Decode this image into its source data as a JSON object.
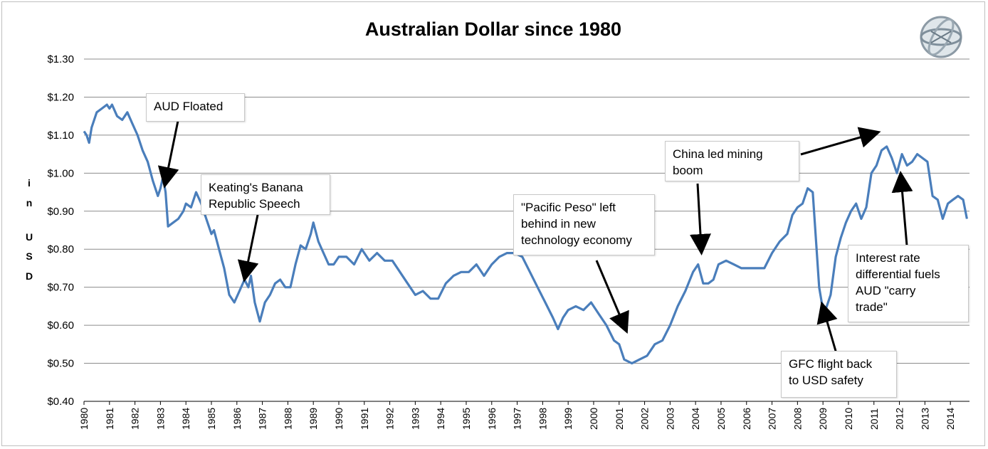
{
  "chart_data": {
    "type": "line",
    "title": "Australian Dollar since 1980",
    "ylabel": "in USD",
    "ylabel_letters": [
      "i",
      "n",
      "U",
      "S",
      "D"
    ],
    "xlim": [
      1980,
      2014.75
    ],
    "ylim": [
      0.4,
      1.3
    ],
    "y_ticks": [
      1.3,
      1.2,
      1.1,
      1.0,
      0.9,
      0.8,
      0.7,
      0.6,
      0.5,
      0.4
    ],
    "y_tick_labels": [
      "$1.30",
      "$1.20",
      "$1.10",
      "$1.00",
      "$0.90",
      "$0.80",
      "$0.70",
      "$0.60",
      "$0.50",
      "$0.40"
    ],
    "x_tick_labels": [
      "1980",
      "1981",
      "1982",
      "1983",
      "1984",
      "1985",
      "1986",
      "1987",
      "1988",
      "1989",
      "1990",
      "1991",
      "1992",
      "1993",
      "1994",
      "1995",
      "1996",
      "1997",
      "1998",
      "1999",
      "2000",
      "2001",
      "2002",
      "2003",
      "2004",
      "2005",
      "2006",
      "2007",
      "2008",
      "2009",
      "2010",
      "2011",
      "2012",
      "2013",
      "2014"
    ],
    "grid": true,
    "line_color": "#4a7ebb",
    "series": [
      {
        "x": [
          1980.0,
          1980.1,
          1980.2,
          1980.3,
          1980.5,
          1980.7,
          1980.9,
          1981.0,
          1981.1,
          1981.3,
          1981.5,
          1981.7,
          1981.9,
          1982.1,
          1982.3,
          1982.5,
          1982.7,
          1982.9,
          1983.0,
          1983.1,
          1983.2,
          1983.3,
          1983.5,
          1983.7,
          1983.9,
          1984.0,
          1984.2,
          1984.4,
          1984.6,
          1984.8,
          1985.0,
          1985.1,
          1985.3,
          1985.5,
          1985.7,
          1985.9,
          1986.1,
          1986.3,
          1986.45,
          1986.55,
          1986.7,
          1986.9,
          1987.1,
          1987.3,
          1987.5,
          1987.7,
          1987.9,
          1988.1,
          1988.3,
          1988.5,
          1988.7,
          1988.9,
          1989.0,
          1989.2,
          1989.4,
          1989.6,
          1989.8,
          1990.0,
          1990.3,
          1990.6,
          1990.9,
          1991.2,
          1991.5,
          1991.8,
          1992.1,
          1992.4,
          1992.7,
          1993.0,
          1993.3,
          1993.6,
          1993.9,
          1994.2,
          1994.5,
          1994.8,
          1995.1,
          1995.4,
          1995.7,
          1996.0,
          1996.3,
          1996.6,
          1996.9,
          1997.2,
          1997.5,
          1997.8,
          1998.1,
          1998.4,
          1998.6,
          1998.8,
          1999.0,
          1999.3,
          1999.6,
          1999.9,
          2000.2,
          2000.5,
          2000.8,
          2001.0,
          2001.2,
          2001.5,
          2001.8,
          2002.1,
          2002.4,
          2002.7,
          2003.0,
          2003.3,
          2003.6,
          2003.9,
          2004.1,
          2004.3,
          2004.5,
          2004.7,
          2004.9,
          2005.2,
          2005.5,
          2005.8,
          2006.1,
          2006.4,
          2006.7,
          2007.0,
          2007.3,
          2007.6,
          2007.8,
          2008.0,
          2008.2,
          2008.4,
          2008.6,
          2008.75,
          2008.85,
          2008.95,
          2009.1,
          2009.3,
          2009.5,
          2009.7,
          2009.9,
          2010.1,
          2010.3,
          2010.5,
          2010.7,
          2010.9,
          2011.1,
          2011.3,
          2011.5,
          2011.7,
          2011.9,
          2012.1,
          2012.3,
          2012.5,
          2012.7,
          2012.9,
          2013.1,
          2013.3,
          2013.5,
          2013.7,
          2013.9,
          2014.1,
          2014.3,
          2014.5,
          2014.65
        ],
        "y": [
          1.11,
          1.1,
          1.08,
          1.12,
          1.16,
          1.17,
          1.18,
          1.17,
          1.18,
          1.15,
          1.14,
          1.16,
          1.13,
          1.1,
          1.06,
          1.03,
          0.98,
          0.94,
          0.96,
          0.99,
          0.95,
          0.86,
          0.87,
          0.88,
          0.9,
          0.92,
          0.91,
          0.95,
          0.92,
          0.88,
          0.84,
          0.85,
          0.8,
          0.75,
          0.68,
          0.66,
          0.69,
          0.72,
          0.7,
          0.73,
          0.66,
          0.61,
          0.66,
          0.68,
          0.71,
          0.72,
          0.7,
          0.7,
          0.76,
          0.81,
          0.8,
          0.84,
          0.87,
          0.82,
          0.79,
          0.76,
          0.76,
          0.78,
          0.78,
          0.76,
          0.8,
          0.77,
          0.79,
          0.77,
          0.77,
          0.74,
          0.71,
          0.68,
          0.69,
          0.67,
          0.67,
          0.71,
          0.73,
          0.74,
          0.74,
          0.76,
          0.73,
          0.76,
          0.78,
          0.79,
          0.79,
          0.78,
          0.74,
          0.7,
          0.66,
          0.62,
          0.59,
          0.62,
          0.64,
          0.65,
          0.64,
          0.66,
          0.63,
          0.6,
          0.56,
          0.55,
          0.51,
          0.5,
          0.51,
          0.52,
          0.55,
          0.56,
          0.6,
          0.65,
          0.69,
          0.74,
          0.76,
          0.71,
          0.71,
          0.72,
          0.76,
          0.77,
          0.76,
          0.75,
          0.75,
          0.75,
          0.75,
          0.79,
          0.82,
          0.84,
          0.89,
          0.91,
          0.92,
          0.96,
          0.95,
          0.8,
          0.7,
          0.66,
          0.64,
          0.68,
          0.78,
          0.83,
          0.87,
          0.9,
          0.92,
          0.88,
          0.91,
          1.0,
          1.02,
          1.06,
          1.07,
          1.04,
          1.0,
          1.05,
          1.02,
          1.03,
          1.05,
          1.04,
          1.03,
          0.94,
          0.93,
          0.88,
          0.92,
          0.93,
          0.94,
          0.93,
          0.88
        ]
      }
    ],
    "annotations": [
      {
        "text": "AUD Floated"
      },
      {
        "text": "Keating's Banana\nRepublic Speech"
      },
      {
        "text": "\"Pacific Peso\"  left\nbehind in new\ntechnology economy"
      },
      {
        "text": "China led mining\nboom"
      },
      {
        "text": "Interest rate\ndifferential  fuels\nAUD \"carry\ntrade\""
      },
      {
        "text": "GFC  flight back\nto USD safety"
      }
    ]
  },
  "logo": {
    "name": "globe-logo"
  }
}
